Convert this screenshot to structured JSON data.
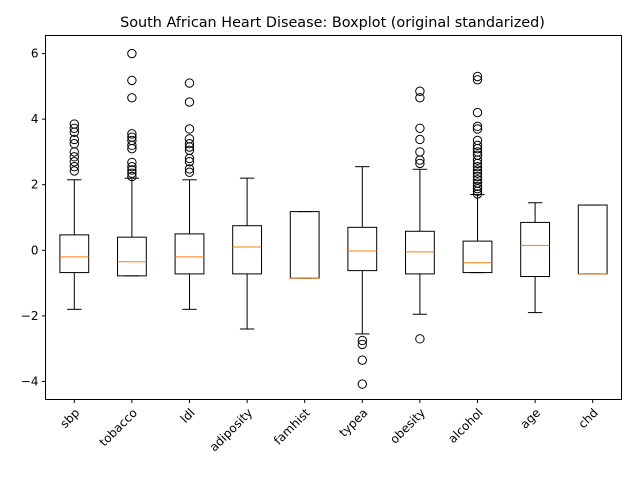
{
  "chart_data": {
    "type": "boxplot",
    "title": "South African Heart Disease: Boxplot (original standarized)",
    "xlabel": "",
    "ylabel": "",
    "ylim": [
      -4.55,
      6.55
    ],
    "yticks": [
      -4,
      -2,
      0,
      2,
      4,
      6
    ],
    "grid": false,
    "colors": {
      "box": "#000000",
      "median": "#ff7f0e",
      "background": "#ffffff"
    },
    "categories": [
      "sbp",
      "tobacco",
      "ldl",
      "adiposity",
      "famhist",
      "typea",
      "obesity",
      "alcohol",
      "age",
      "chd"
    ],
    "boxes": [
      {
        "name": "sbp",
        "whislo": -1.8,
        "q1": -0.68,
        "med": -0.2,
        "q3": 0.47,
        "whishi": 2.15,
        "fliers": [
          2.42,
          2.55,
          2.7,
          2.85,
          3.0,
          3.25,
          3.38,
          3.6,
          3.72,
          3.85
        ]
      },
      {
        "name": "tobacco",
        "whislo": -0.78,
        "q1": -0.78,
        "med": -0.35,
        "q3": 0.4,
        "whishi": 2.2,
        "fliers": [
          2.25,
          2.35,
          2.45,
          2.55,
          2.68,
          3.1,
          3.2,
          3.35,
          3.45,
          3.55,
          4.65,
          5.18,
          6.0
        ]
      },
      {
        "name": "ldl",
        "whislo": -1.8,
        "q1": -0.72,
        "med": -0.2,
        "q3": 0.5,
        "whishi": 2.15,
        "fliers": [
          2.38,
          2.48,
          2.7,
          2.8,
          3.05,
          3.15,
          3.25,
          3.4,
          3.7,
          4.52,
          5.1
        ]
      },
      {
        "name": "adiposity",
        "whislo": -2.4,
        "q1": -0.72,
        "med": 0.1,
        "q3": 0.75,
        "whishi": 2.2,
        "fliers": []
      },
      {
        "name": "famhist",
        "whislo": -0.85,
        "q1": -0.85,
        "med": -0.85,
        "q3": 1.18,
        "whishi": 1.18,
        "fliers": []
      },
      {
        "name": "typea",
        "whislo": -2.55,
        "q1": -0.62,
        "med": -0.02,
        "q3": 0.7,
        "whishi": 2.55,
        "fliers": [
          -2.75,
          -2.87,
          -3.35,
          -4.08
        ]
      },
      {
        "name": "obesity",
        "whislo": -1.95,
        "q1": -0.72,
        "med": -0.05,
        "q3": 0.58,
        "whishi": 2.47,
        "fliers": [
          2.65,
          2.75,
          3.0,
          3.38,
          3.72,
          4.65,
          4.85,
          -2.7
        ]
      },
      {
        "name": "alcohol",
        "whislo": -0.68,
        "q1": -0.68,
        "med": -0.38,
        "q3": 0.28,
        "whishi": 1.7,
        "fliers": [
          1.72,
          1.8,
          1.88,
          1.95,
          2.05,
          2.15,
          2.25,
          2.35,
          2.45,
          2.55,
          2.65,
          2.75,
          2.9,
          3.0,
          3.1,
          3.2,
          3.35,
          3.7,
          3.78,
          4.2,
          5.2,
          5.3
        ]
      },
      {
        "name": "age",
        "whislo": -1.9,
        "q1": -0.8,
        "med": 0.15,
        "q3": 0.85,
        "whishi": 1.45,
        "fliers": []
      },
      {
        "name": "chd",
        "whislo": -0.72,
        "q1": -0.72,
        "med": -0.72,
        "q3": 1.38,
        "whishi": 1.38,
        "fliers": []
      }
    ]
  }
}
